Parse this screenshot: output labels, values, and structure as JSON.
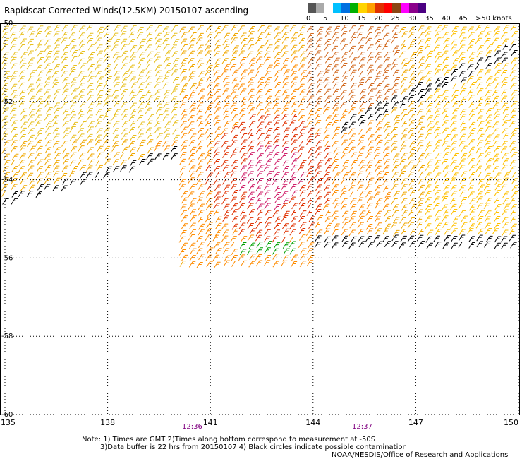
{
  "title": "Rapidscat Corrected Winds(12.5KM) 20150107 ascending",
  "legend": {
    "colors": [
      "#555555",
      "#aaaaaa",
      "#ffffff",
      "#00c0ff",
      "#0070e0",
      "#00b000",
      "#ffd400",
      "#ffa000",
      "#e03000",
      "#ff0000",
      "#8b4513",
      "#ff00ff",
      "#8b008b",
      "#4b0082"
    ],
    "labels": [
      "0",
      "5",
      "10",
      "15",
      "20",
      "25",
      "30",
      "35",
      "40",
      "45",
      ">50 knots"
    ]
  },
  "lat_labels": [
    "-50",
    "-52",
    "-54",
    "-56",
    "-58",
    "-60"
  ],
  "lon_labels": [
    "135",
    "138",
    "141",
    "144",
    "147",
    "150"
  ],
  "pass_times": [
    "12:36",
    "12:37"
  ],
  "notes": {
    "line1": "Note: 1) Times are GMT 2)Times along bottom correspond to measurement at -50S",
    "line2": "3)Data buffer is 22 hrs from 20150107 4) Black circles indicate possible contamination",
    "line3": "NOAA/NESDIS/Office of Research and Applications"
  }
}
